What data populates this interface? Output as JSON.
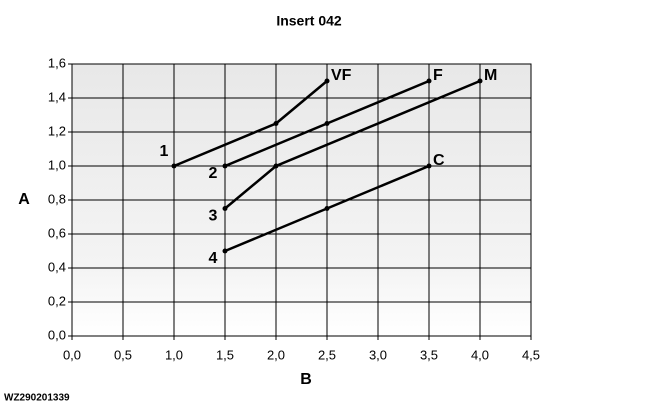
{
  "chart_data": {
    "type": "line",
    "title": "Insert 042",
    "x_label": "B",
    "y_label": "A",
    "footnote": "WZ290201339",
    "series": [
      {
        "name": "VF",
        "start_label": "1",
        "color": "#000000",
        "x": [
          1.0,
          2.0,
          2.5
        ],
        "values": [
          1.0,
          1.25,
          1.5
        ]
      },
      {
        "name": "F",
        "start_label": "2",
        "color": "#000000",
        "x": [
          1.5,
          2.5,
          3.5
        ],
        "values": [
          1.0,
          1.25,
          1.5
        ]
      },
      {
        "name": "M",
        "start_label": "3",
        "color": "#000000",
        "x": [
          1.5,
          2.0,
          4.0
        ],
        "values": [
          0.75,
          1.0,
          1.5
        ]
      },
      {
        "name": "C",
        "start_label": "4",
        "color": "#000000",
        "x": [
          1.5,
          2.5,
          3.5
        ],
        "values": [
          0.5,
          0.75,
          1.0
        ]
      }
    ],
    "xlim": [
      0,
      4.5
    ],
    "xticks": [
      {
        "value": 0,
        "label": "0,0"
      },
      {
        "value": 0.5,
        "label": "0,5"
      },
      {
        "value": 1,
        "label": "1,0"
      },
      {
        "value": 1.5,
        "label": "1,5"
      },
      {
        "value": 2,
        "label": "2,0"
      },
      {
        "value": 2.5,
        "label": "2,5"
      },
      {
        "value": 3,
        "label": "3,0"
      },
      {
        "value": 3.5,
        "label": "3,5"
      },
      {
        "value": 4,
        "label": "4,0"
      },
      {
        "value": 4.5,
        "label": "4,5"
      }
    ],
    "ylim": [
      0,
      1.6
    ],
    "yticks": [
      {
        "value": 0,
        "label": "0,0"
      },
      {
        "value": 0.2,
        "label": "0,2"
      },
      {
        "value": 0.4,
        "label": "0,4"
      },
      {
        "value": 0.6,
        "label": "0,6"
      },
      {
        "value": 0.8,
        "label": "0,8"
      },
      {
        "value": 1,
        "label": "1,0"
      },
      {
        "value": 1.2,
        "label": "1,2"
      },
      {
        "value": 1.4,
        "label": "1,4"
      },
      {
        "value": 1.6,
        "label": "1,6"
      }
    ],
    "grid": true
  }
}
